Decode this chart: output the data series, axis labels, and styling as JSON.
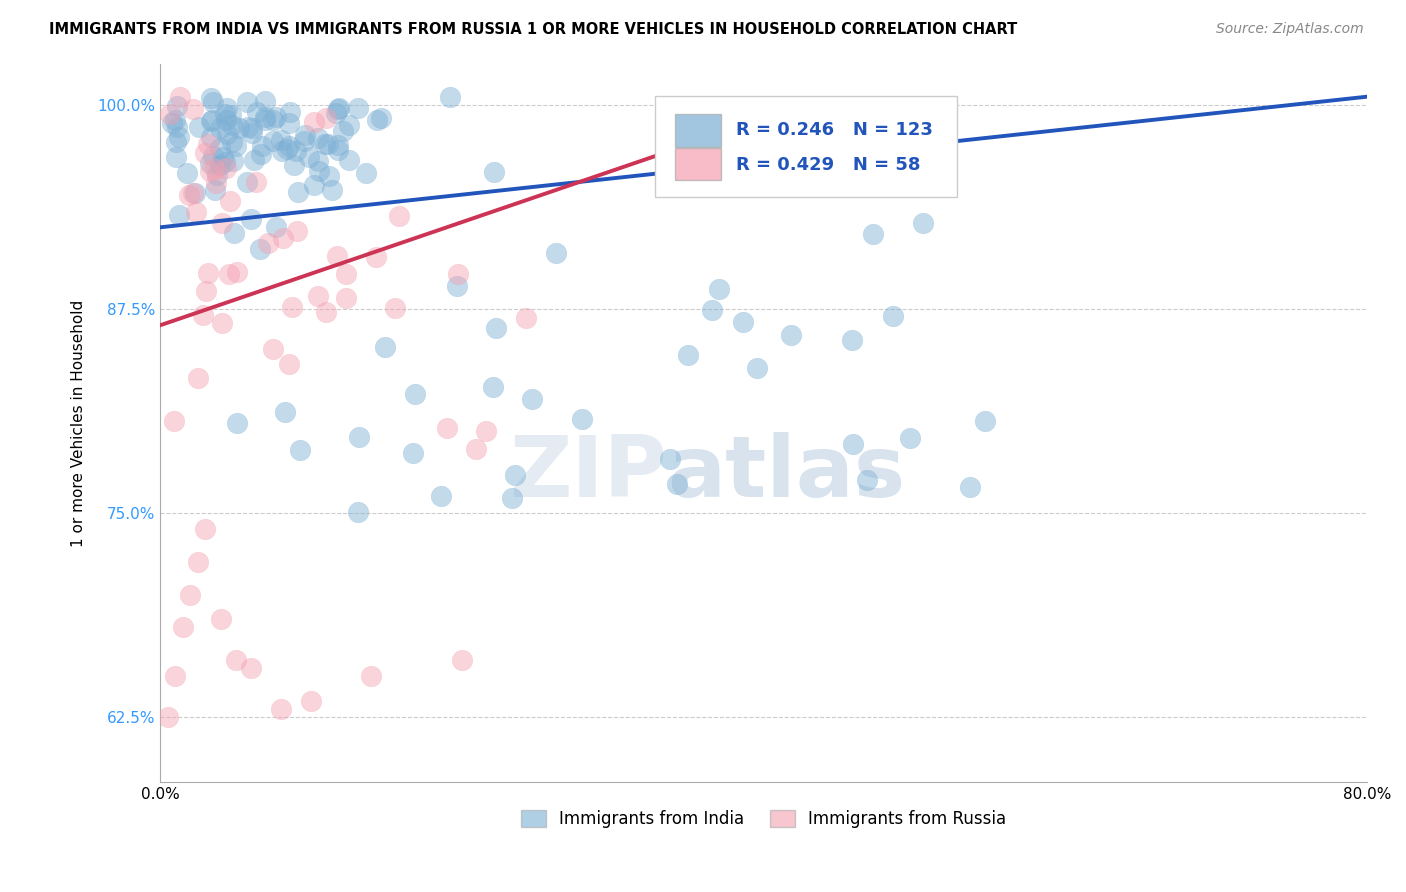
{
  "title": "IMMIGRANTS FROM INDIA VS IMMIGRANTS FROM RUSSIA 1 OR MORE VEHICLES IN HOUSEHOLD CORRELATION CHART",
  "source": "Source: ZipAtlas.com",
  "ylabel": "1 or more Vehicles in Household",
  "xlim": [
    0.0,
    0.8
  ],
  "ylim": [
    0.585,
    1.025
  ],
  "yticks": [
    0.625,
    0.75,
    0.875,
    1.0
  ],
  "ytick_labels": [
    "62.5%",
    "75.0%",
    "87.5%",
    "100.0%"
  ],
  "xticks": [
    0.0,
    0.1,
    0.2,
    0.3,
    0.4,
    0.5,
    0.6,
    0.7,
    0.8
  ],
  "xtick_labels": [
    "0.0%",
    "",
    "",
    "",
    "",
    "",
    "",
    "",
    "80.0%"
  ],
  "india_color": "#7bafd4",
  "russia_color": "#f4a0b0",
  "india_line_color": "#2255bb",
  "russia_line_color": "#cc3355",
  "india_R": 0.246,
  "india_N": 123,
  "russia_R": 0.429,
  "russia_N": 58,
  "legend_india": "Immigrants from India",
  "legend_russia": "Immigrants from Russia",
  "watermark_zip": "ZIP",
  "watermark_atlas": "atlas",
  "india_line_x0": 0.0,
  "india_line_x1": 0.8,
  "india_line_y0": 0.925,
  "india_line_y1": 1.005,
  "russia_line_x0": 0.0,
  "russia_line_x1": 0.38,
  "russia_line_y0": 0.865,
  "russia_line_y1": 0.985
}
